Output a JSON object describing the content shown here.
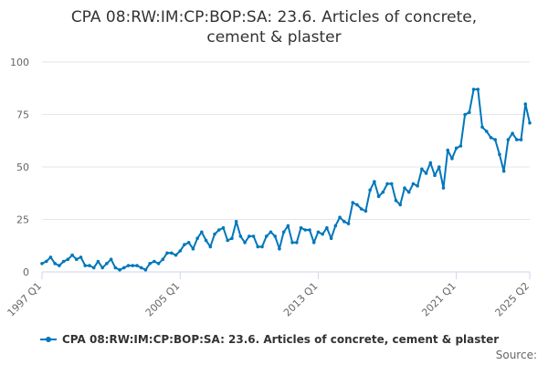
{
  "chart_data": {
    "type": "line",
    "title_lines": [
      "CPA 08:RW:IM:CP:BOP:SA: 23.6. Articles of concrete,",
      "cement & plaster"
    ],
    "xlabel": "",
    "ylabel": "",
    "ylim": [
      0,
      100
    ],
    "y_ticks": [
      0,
      25,
      50,
      75,
      100
    ],
    "x_tick_labels": [
      "1997 Q1",
      "2005 Q1",
      "2013 Q1",
      "2021 Q1",
      "2025 Q2"
    ],
    "x_tick_index": [
      0,
      32,
      64,
      96,
      113
    ],
    "grid": "horizontal",
    "legend_position": "bottom",
    "color": "#0077bb",
    "series": [
      {
        "name": "CPA 08:RW:IM:CP:BOP:SA: 23.6. Articles of concrete, cement & plaster",
        "values": [
          4,
          5,
          7,
          4,
          3,
          5,
          6,
          8,
          6,
          7,
          3,
          3,
          2,
          5,
          2,
          4,
          6,
          2,
          1,
          2,
          3,
          3,
          3,
          2,
          1,
          4,
          5,
          4,
          6,
          9,
          9,
          8,
          10,
          13,
          14,
          11,
          16,
          19,
          15,
          12,
          18,
          20,
          21,
          15,
          16,
          24,
          17,
          14,
          17,
          17,
          12,
          12,
          17,
          19,
          17,
          11,
          19,
          22,
          14,
          14,
          21,
          20,
          20,
          14,
          19,
          18,
          21,
          16,
          22,
          26,
          24,
          23,
          33,
          32,
          30,
          29,
          39,
          43,
          36,
          38,
          42,
          42,
          34,
          32,
          40,
          38,
          42,
          41,
          49,
          47,
          52,
          46,
          50,
          40,
          58,
          54,
          59,
          60,
          75,
          76,
          87,
          87,
          69,
          67,
          64,
          63,
          56,
          48,
          63,
          66,
          63,
          63,
          80,
          71
        ]
      }
    ]
  },
  "legend": {
    "label": "CPA 08:RW:IM:CP:BOP:SA: 23.6. Articles of concrete, cement & plaster"
  },
  "source": {
    "label": "Source:"
  }
}
